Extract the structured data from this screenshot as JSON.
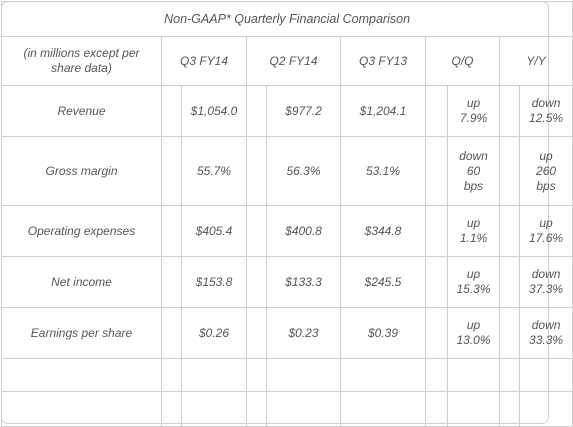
{
  "table": {
    "title": "Non-GAAP* Quarterly Financial Comparison",
    "header": {
      "label": [
        "(in millions except per",
        "share data)"
      ],
      "columns": [
        "Q3 FY14",
        "Q2 FY14",
        "Q3 FY13",
        "Q/Q",
        "Y/Y"
      ]
    },
    "rows": [
      {
        "label": "Revenue",
        "q3fy14": "$1,054.0",
        "q2fy14": "$977.2",
        "q3fy13": "$1,204.1",
        "qq": [
          "up",
          "7.9%"
        ],
        "yy": [
          "down",
          "12.5%"
        ]
      },
      {
        "label": "Gross margin",
        "q3fy14": "55.7%",
        "q2fy14": "56.3%",
        "q3fy13": "53.1%",
        "qq": [
          "down",
          "60",
          "bps"
        ],
        "yy": [
          "up",
          "260",
          "bps"
        ]
      },
      {
        "label": "Operating expenses",
        "q3fy14": "$405.4",
        "q2fy14": "$400.8",
        "q3fy13": "$344.8",
        "qq": [
          "up",
          "1.1%"
        ],
        "yy": [
          "up",
          "17.6%"
        ]
      },
      {
        "label": "Net income",
        "q3fy14": "$153.8",
        "q2fy14": "$133.3",
        "q3fy13": "$245.5",
        "qq": [
          "up",
          "15.3%"
        ],
        "yy": [
          "down",
          "37.3%"
        ]
      },
      {
        "label": "Earnings per share",
        "q3fy14": "$0.26",
        "q2fy14": "$0.23",
        "q3fy13": "$0.39",
        "qq": [
          "up",
          "13.0%"
        ],
        "yy": [
          "down",
          "33.3%"
        ]
      }
    ]
  }
}
